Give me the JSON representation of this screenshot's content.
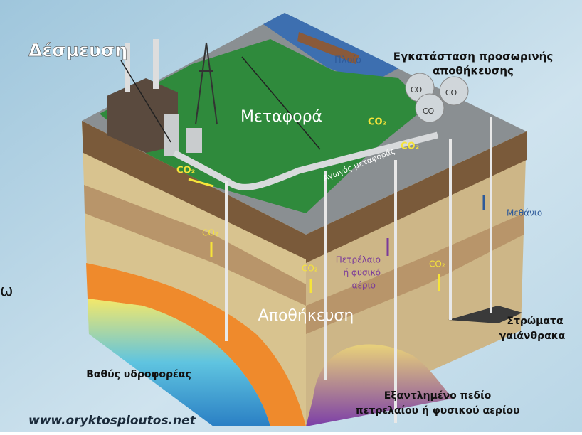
{
  "labels": {
    "capture": "Δέσμευση",
    "ship": "Πλοίο",
    "temp_storage": [
      "Εγκατάσταση προσωρινής",
      "αποθήκευσης"
    ],
    "tanks": [
      "CO",
      "CO",
      "CO"
    ],
    "transport": "Μεταφορά",
    "pipeline": "Αγωγός μεταφοράς",
    "co2": [
      "CO₂",
      "CO₂",
      "CO₂",
      "CO₂",
      "CO₂",
      "CO₂"
    ],
    "methane": "Μεθάνιο",
    "oil_gas": [
      "Πετρέλαιο",
      "ή φυσικό",
      "αέριο"
    ],
    "storage": "Αποθήκευση",
    "coal_seams": [
      "Στρώματα",
      "γαιάνθρακα"
    ],
    "aquifer": "Βαθύς υδροφορέας",
    "depleted_field": [
      "Εξαντλημένο πεδίο",
      "πετρελαίου ή φυσικού αερίου"
    ],
    "website": "www.oryktosploutos.net",
    "edge_fragment": "ω"
  }
}
